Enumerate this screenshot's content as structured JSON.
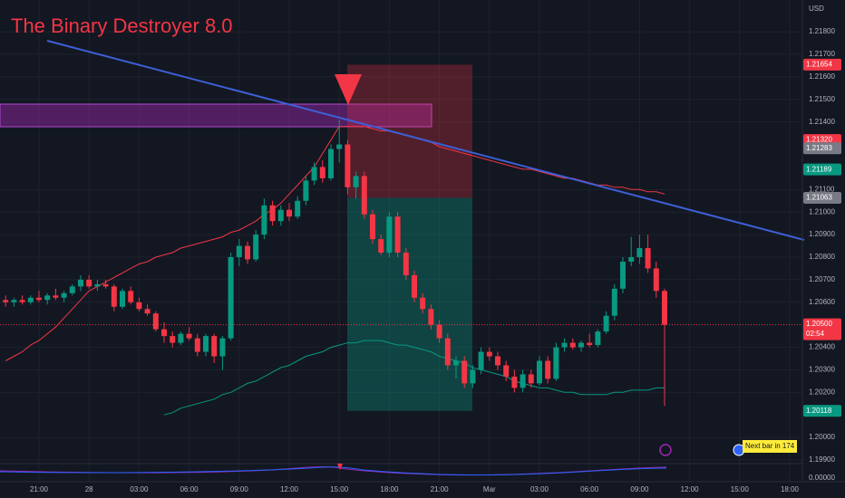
{
  "chart_data": {
    "type": "candlestick",
    "title": "The Binary Destroyer 8.0",
    "currency": "USD",
    "categories": [
      null,
      null,
      null,
      null,
      "21:00",
      null,
      null,
      null,
      null,
      null,
      "28",
      null,
      null,
      null,
      null,
      null,
      "03:00",
      null,
      null,
      null,
      null,
      null,
      "06:00",
      null,
      null,
      null,
      null,
      null,
      "09:00",
      null,
      null,
      null,
      null,
      null,
      "12:00",
      null,
      null,
      null,
      null,
      null,
      "15:00",
      null,
      null,
      null,
      null,
      null,
      "18:00",
      null,
      null,
      null,
      null,
      null,
      "21:00",
      null,
      null,
      null,
      null,
      null,
      "Mar",
      null,
      null,
      null,
      null,
      null,
      "03:00",
      null,
      null,
      null,
      null,
      null,
      "06:00",
      null,
      null,
      null,
      null,
      null,
      "09:00",
      null,
      null,
      null,
      null,
      null,
      "12:00",
      null,
      null,
      null,
      null,
      null,
      "15:00",
      null,
      null,
      null,
      null,
      null,
      "18:00",
      null
    ],
    "open": [
      1.2061,
      1.206,
      1.2061,
      1.206,
      1.2062,
      1.2061,
      1.2063,
      1.2062,
      1.2064,
      1.2067,
      1.207,
      1.2067,
      1.2068,
      1.2067,
      1.2058,
      1.2065,
      1.206,
      1.2057,
      1.2055,
      1.2048,
      1.2045,
      1.2042,
      1.2046,
      1.2044,
      1.2038,
      1.2045,
      1.2036,
      1.2044,
      1.208,
      1.2085,
      1.2079,
      1.209,
      1.2103,
      1.2096,
      1.2101,
      1.2098,
      1.2105,
      1.2114,
      1.212,
      1.2115,
      1.2128,
      1.213,
      1.2111,
      1.2116,
      1.2099,
      1.2088,
      1.2082,
      1.2098,
      1.2082,
      1.2072,
      1.2062,
      1.2057,
      1.205,
      1.2044,
      1.2032,
      1.2034,
      1.2024,
      1.203,
      1.2038,
      1.2036,
      1.2032,
      1.2027,
      1.2022,
      1.2028,
      1.2024,
      1.2034,
      1.2026,
      1.204,
      1.2042,
      1.204,
      1.2042,
      1.2041,
      1.2047,
      1.2054,
      1.2066,
      1.2078,
      1.208,
      1.2084,
      1.2075,
      1.2065,
      null,
      null,
      null,
      null,
      null,
      null,
      null,
      null,
      null,
      null,
      null,
      null,
      null,
      null,
      null,
      null
    ],
    "high": [
      1.2063,
      1.2062,
      1.2063,
      1.2063,
      1.2065,
      1.2064,
      1.2066,
      1.2065,
      1.2068,
      1.2072,
      1.2072,
      1.207,
      1.207,
      1.2068,
      1.2066,
      1.2067,
      1.2062,
      1.2059,
      1.2056,
      1.2051,
      1.2047,
      1.2047,
      1.2049,
      1.2046,
      1.2046,
      1.2046,
      1.2045,
      1.2082,
      1.2088,
      1.2087,
      1.2092,
      1.2106,
      1.2105,
      1.2103,
      1.2104,
      1.2107,
      1.2116,
      1.2122,
      1.2123,
      1.213,
      1.2141,
      1.2132,
      1.2118,
      1.2118,
      1.2101,
      1.209,
      1.21,
      1.21,
      1.2084,
      1.2074,
      1.2064,
      1.2059,
      1.2052,
      1.2046,
      1.2036,
      1.2036,
      1.2032,
      1.204,
      1.204,
      1.2038,
      1.2034,
      1.203,
      1.203,
      1.203,
      1.2036,
      1.2036,
      1.2042,
      1.2044,
      1.2044,
      1.2043,
      1.2046,
      1.2048,
      1.2056,
      1.2068,
      1.208,
      1.2089,
      1.209,
      1.209,
      1.2078,
      1.2066,
      null,
      null,
      null,
      null,
      null,
      null,
      null,
      null,
      null,
      null,
      null,
      null,
      null,
      null,
      null,
      null
    ],
    "low": [
      1.2058,
      1.2058,
      1.2059,
      1.2059,
      1.206,
      1.2059,
      1.2061,
      1.206,
      1.2063,
      1.2065,
      1.2066,
      1.2065,
      1.2066,
      1.2056,
      1.2057,
      1.2059,
      1.2056,
      1.2054,
      1.2047,
      1.2042,
      1.204,
      1.2041,
      1.2043,
      1.2036,
      1.2036,
      1.2033,
      1.203,
      1.2043,
      1.2076,
      1.2077,
      1.2078,
      1.2088,
      1.2094,
      1.2094,
      1.2096,
      1.2097,
      1.2103,
      1.2112,
      1.2113,
      1.2114,
      1.2122,
      1.2108,
      1.2106,
      1.2097,
      1.2086,
      1.2081,
      1.208,
      1.208,
      1.207,
      1.206,
      1.2055,
      1.2048,
      1.2042,
      1.203,
      1.2026,
      1.2022,
      1.2022,
      1.2028,
      1.2034,
      1.203,
      1.2025,
      1.202,
      1.202,
      1.2022,
      1.2023,
      1.2024,
      1.2025,
      1.2038,
      1.2039,
      1.2038,
      1.204,
      1.204,
      1.2046,
      1.2052,
      1.2064,
      1.2076,
      1.2077,
      1.2073,
      1.2062,
      1.2014,
      null,
      null,
      null,
      null,
      null,
      null,
      null,
      null,
      null,
      null,
      null,
      null,
      null,
      null,
      null,
      null
    ],
    "close": [
      1.206,
      1.2061,
      1.206,
      1.2062,
      1.2061,
      1.2063,
      1.2062,
      1.2064,
      1.2067,
      1.207,
      1.2067,
      1.2068,
      1.2067,
      1.2058,
      1.2065,
      1.206,
      1.2057,
      1.2055,
      1.2048,
      1.2045,
      1.2042,
      1.2046,
      1.2044,
      1.2038,
      1.2045,
      1.2036,
      1.2044,
      1.208,
      1.2085,
      1.2079,
      1.209,
      1.2103,
      1.2096,
      1.2101,
      1.2098,
      1.2105,
      1.2114,
      1.212,
      1.2115,
      1.2128,
      1.213,
      1.2111,
      1.2116,
      1.2099,
      1.2088,
      1.2082,
      1.2098,
      1.2082,
      1.2072,
      1.2062,
      1.2057,
      1.205,
      1.2044,
      1.2032,
      1.2034,
      1.2024,
      1.203,
      1.2038,
      1.2036,
      1.2032,
      1.2027,
      1.2022,
      1.2028,
      1.2024,
      1.2034,
      1.2026,
      1.204,
      1.2042,
      1.204,
      1.2042,
      1.2041,
      1.2047,
      1.2054,
      1.2066,
      1.2078,
      1.208,
      1.2084,
      1.2075,
      1.2065,
      1.205,
      null,
      null,
      null,
      null,
      null,
      null,
      null,
      null,
      null,
      null,
      null,
      null,
      null,
      null,
      null,
      null
    ],
    "up_color": "#089981",
    "down_color": "#f23645",
    "overlays": [
      {
        "color": "#f23645",
        "values": [
          1.2034,
          1.2036,
          1.2038,
          1.2041,
          1.2043,
          1.2046,
          1.2049,
          1.2053,
          1.2057,
          1.2061,
          1.2065,
          1.2067,
          1.2069,
          1.2071,
          1.2073,
          1.2075,
          1.2077,
          1.2078,
          1.208,
          1.2081,
          1.2082,
          1.2084,
          1.2085,
          1.2086,
          1.2087,
          1.2088,
          1.2089,
          1.2091,
          1.2092,
          1.2094,
          1.2096,
          1.2099,
          1.2101,
          1.2104,
          1.2108,
          1.2112,
          1.2116,
          1.212,
          1.2126,
          1.2132,
          1.2138,
          1.2138,
          1.2138,
          1.2138,
          1.2137,
          1.2136,
          1.2136,
          1.2135,
          1.2134,
          1.2133,
          1.2132,
          1.2131,
          1.2129,
          1.2128,
          1.2127,
          1.2126,
          1.2125,
          1.2124,
          1.2123,
          1.2122,
          1.2121,
          1.212,
          1.2119,
          1.2119,
          1.2118,
          1.2117,
          1.2116,
          1.2115,
          1.2115,
          1.2114,
          1.2113,
          1.2112,
          1.2112,
          1.2111,
          1.2111,
          1.211,
          1.211,
          1.2109,
          1.2109,
          1.2108,
          null,
          null,
          null,
          null,
          null,
          null,
          null,
          null,
          null,
          null,
          null,
          null,
          null,
          null,
          null,
          null
        ]
      },
      {
        "color": "#089981",
        "values": [
          null,
          null,
          null,
          null,
          null,
          null,
          null,
          null,
          null,
          null,
          null,
          null,
          null,
          null,
          null,
          null,
          null,
          null,
          null,
          1.201,
          1.2011,
          1.2013,
          1.2014,
          1.2015,
          1.2016,
          1.2017,
          1.2019,
          1.202,
          1.2022,
          1.2024,
          1.2025,
          1.2027,
          1.2029,
          1.2031,
          1.2032,
          1.2034,
          1.2036,
          1.2037,
          1.2038,
          1.204,
          1.2041,
          1.2042,
          1.2042,
          1.2043,
          1.2043,
          1.2043,
          1.2042,
          1.2041,
          1.2041,
          1.204,
          1.2039,
          1.2038,
          1.2036,
          1.2035,
          1.2034,
          1.2033,
          1.2031,
          1.203,
          1.2029,
          1.2028,
          1.2027,
          1.2025,
          1.2024,
          1.2023,
          1.2022,
          1.2022,
          1.2021,
          1.202,
          1.202,
          1.2019,
          1.2019,
          1.2019,
          1.2019,
          1.202,
          1.202,
          1.2021,
          1.2021,
          1.2021,
          1.2022,
          1.2022,
          null,
          null,
          null,
          null,
          null,
          null,
          null,
          null,
          null,
          null,
          null,
          null,
          null,
          null,
          null,
          null
        ]
      }
    ],
    "ylim": [
      1.19884,
      1.21941
    ],
    "yticks": [
      {
        "value": 1.218,
        "label": "1.21800"
      },
      {
        "value": 1.217,
        "label": "1.21700"
      },
      {
        "value": 1.216,
        "label": "1.21600"
      },
      {
        "value": 1.215,
        "label": "1.21500"
      },
      {
        "value": 1.214,
        "label": "1.21400"
      },
      {
        "value": 1.211,
        "label": "1.21100"
      },
      {
        "value": 1.21,
        "label": "1.21000"
      },
      {
        "value": 1.209,
        "label": "1.20900"
      },
      {
        "value": 1.208,
        "label": "1.20800"
      },
      {
        "value": 1.207,
        "label": "1.20700"
      },
      {
        "value": 1.206,
        "label": "1.20600"
      },
      {
        "value": 1.204,
        "label": "1.20400"
      },
      {
        "value": 1.203,
        "label": "1.20300"
      },
      {
        "value": 1.202,
        "label": "1.20200"
      },
      {
        "value": 1.2,
        "label": "1.20000"
      },
      {
        "value": 1.199,
        "label": "1.19900"
      }
    ],
    "price_labels": [
      {
        "value": 1.21654,
        "label": "1.21654",
        "color": "#f23645"
      },
      {
        "value": 1.2132,
        "label": "1.21320",
        "color": "#f23645"
      },
      {
        "value": 1.21283,
        "label": "1.21283",
        "color": "#787b86"
      },
      {
        "value": 1.21189,
        "label": "1.21189",
        "color": "#089981"
      },
      {
        "value": 1.21063,
        "label": "1.21063",
        "color": "#787b86"
      },
      {
        "value": 1.20118,
        "label": "1.20118",
        "color": "#089981"
      }
    ],
    "last_price": {
      "value": 1.205,
      "label": "1.20500",
      "countdown": "02:54",
      "color": "#f23645"
    },
    "oscillator_tick": {
      "value": 0,
      "label": "0.00000"
    },
    "next_bar_note": "Next bar in 174",
    "grid": true
  }
}
